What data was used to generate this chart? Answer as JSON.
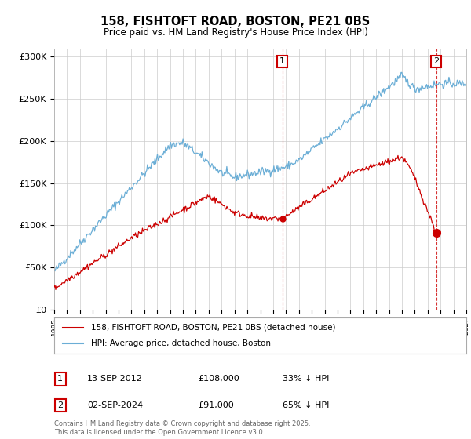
{
  "title": "158, FISHTOFT ROAD, BOSTON, PE21 0BS",
  "subtitle": "Price paid vs. HM Land Registry's House Price Index (HPI)",
  "xlim_start": 1995.0,
  "xlim_end": 2027.0,
  "ylim": [
    0,
    310000
  ],
  "yticks": [
    0,
    50000,
    100000,
    150000,
    200000,
    250000,
    300000
  ],
  "ytick_labels": [
    "£0",
    "£50K",
    "£100K",
    "£150K",
    "£200K",
    "£250K",
    "£300K"
  ],
  "hpi_color": "#6baed6",
  "price_color": "#cc0000",
  "marker1_date": 2012.71,
  "marker1_price": 108000,
  "marker2_date": 2024.67,
  "marker2_price": 91000,
  "legend_price_label": "158, FISHTOFT ROAD, BOSTON, PE21 0BS (detached house)",
  "legend_hpi_label": "HPI: Average price, detached house, Boston",
  "table_row1": [
    "1",
    "13-SEP-2012",
    "£108,000",
    "33% ↓ HPI"
  ],
  "table_row2": [
    "2",
    "02-SEP-2024",
    "£91,000",
    "65% ↓ HPI"
  ],
  "footnote": "Contains HM Land Registry data © Crown copyright and database right 2025.\nThis data is licensed under the Open Government Licence v3.0.",
  "background_color": "#ffffff",
  "grid_color": "#cccccc"
}
